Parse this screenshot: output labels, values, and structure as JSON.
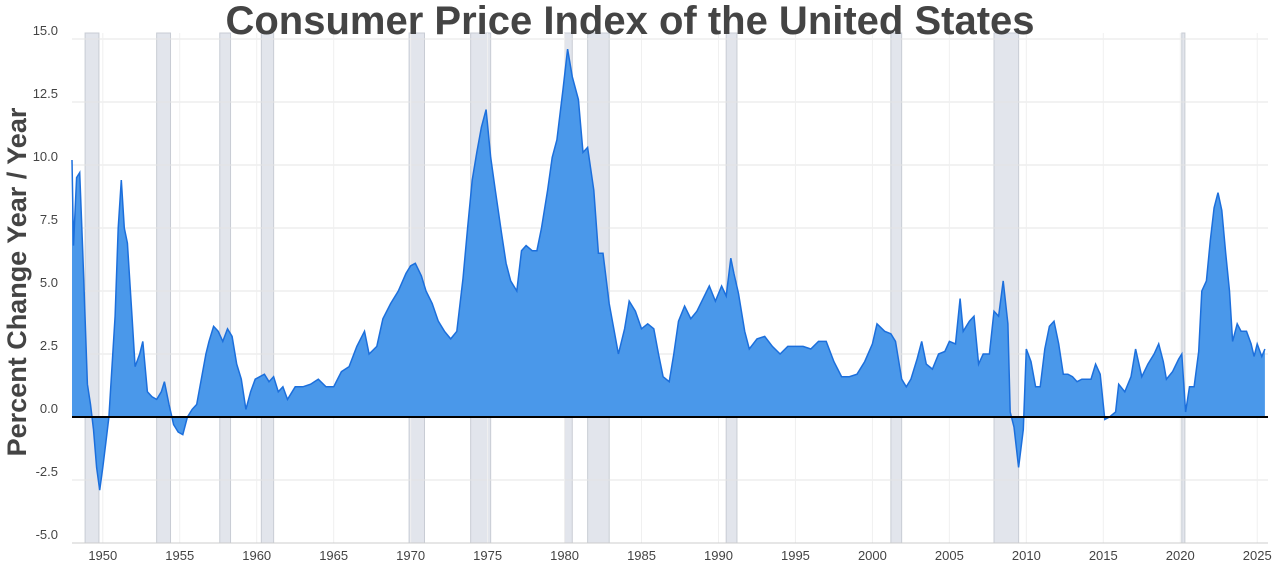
{
  "chart_data": {
    "type": "area",
    "title": "Consumer Price Index of the United States",
    "y_label": "Percent Change Year / Year",
    "color": "#4a98ea",
    "line_color": "#1c6fdc",
    "xlim": [
      1948,
      2025.7
    ],
    "ylim": [
      -5,
      15
    ],
    "xticks": [
      1950,
      1955,
      1960,
      1965,
      1970,
      1975,
      1980,
      1985,
      1990,
      1995,
      2000,
      2005,
      2010,
      2015,
      2020,
      2025
    ],
    "yticks": [
      {
        "value": 15,
        "label": "15.0"
      },
      {
        "value": 12.5,
        "label": "12.5"
      },
      {
        "value": 10,
        "label": "10.0"
      },
      {
        "value": 7.5,
        "label": "7.5"
      },
      {
        "value": 5,
        "label": "5.0"
      },
      {
        "value": 2.5,
        "label": "2.5"
      },
      {
        "value": 0,
        "label": "0.0"
      },
      {
        "value": -2.5,
        "label": "-2.5"
      },
      {
        "value": -5,
        "label": "-5.0"
      }
    ],
    "grid": true,
    "recessions": [
      [
        1948.85,
        1949.75
      ],
      [
        1953.5,
        1954.4
      ],
      [
        1957.6,
        1958.3
      ],
      [
        1960.3,
        1961.1
      ],
      [
        1969.9,
        1970.9
      ],
      [
        1973.9,
        1975.2
      ],
      [
        1980.0,
        1980.5
      ],
      [
        1981.5,
        1982.9
      ],
      [
        1990.5,
        1991.2
      ],
      [
        2001.2,
        2001.9
      ],
      [
        2007.9,
        2009.5
      ],
      [
        2020.1,
        2020.3
      ]
    ],
    "x": [
      1948.0,
      1948.1,
      1948.3,
      1948.5,
      1948.7,
      1948.9,
      1949.0,
      1949.2,
      1949.4,
      1949.6,
      1949.8,
      1950.0,
      1950.2,
      1950.4,
      1950.6,
      1950.8,
      1951.0,
      1951.2,
      1951.4,
      1951.6,
      1951.9,
      1952.1,
      1952.4,
      1952.6,
      1952.9,
      1953.2,
      1953.5,
      1953.8,
      1954.0,
      1954.3,
      1954.6,
      1954.9,
      1955.2,
      1955.5,
      1955.8,
      1956.1,
      1956.4,
      1956.7,
      1956.9,
      1957.2,
      1957.5,
      1957.8,
      1958.1,
      1958.4,
      1958.7,
      1959.0,
      1959.3,
      1959.6,
      1959.9,
      1960.2,
      1960.5,
      1960.8,
      1961.1,
      1961.4,
      1961.7,
      1962.0,
      1962.5,
      1963.0,
      1963.5,
      1964.0,
      1964.5,
      1965.0,
      1965.5,
      1966.0,
      1966.5,
      1967.0,
      1967.3,
      1967.8,
      1968.2,
      1968.7,
      1969.2,
      1969.7,
      1970.0,
      1970.3,
      1970.7,
      1971.0,
      1971.4,
      1971.8,
      1972.2,
      1972.6,
      1973.0,
      1973.4,
      1973.7,
      1974.0,
      1974.3,
      1974.6,
      1974.9,
      1975.2,
      1975.5,
      1975.9,
      1976.2,
      1976.5,
      1976.9,
      1977.2,
      1977.5,
      1977.9,
      1978.2,
      1978.5,
      1978.9,
      1979.2,
      1979.5,
      1979.9,
      1980.2,
      1980.5,
      1980.9,
      1981.2,
      1981.5,
      1981.9,
      1982.2,
      1982.5,
      1982.9,
      1983.2,
      1983.5,
      1983.9,
      1984.2,
      1984.6,
      1985.0,
      1985.4,
      1985.8,
      1986.1,
      1986.4,
      1986.8,
      1987.1,
      1987.4,
      1987.8,
      1988.2,
      1988.6,
      1989.0,
      1989.4,
      1989.8,
      1990.2,
      1990.5,
      1990.8,
      1991.0,
      1991.3,
      1991.7,
      1992.0,
      1992.5,
      1993.0,
      1993.5,
      1994.0,
      1994.5,
      1995.0,
      1995.5,
      1996.0,
      1996.5,
      1997.0,
      1997.5,
      1998.0,
      1998.5,
      1999.0,
      1999.5,
      2000.0,
      2000.3,
      2000.8,
      2001.2,
      2001.5,
      2001.9,
      2002.2,
      2002.5,
      2002.9,
      2003.2,
      2003.5,
      2003.9,
      2004.3,
      2004.7,
      2005.0,
      2005.4,
      2005.7,
      2005.9,
      2006.3,
      2006.6,
      2006.9,
      2007.2,
      2007.6,
      2007.9,
      2008.2,
      2008.5,
      2008.8,
      2008.95,
      2009.2,
      2009.5,
      2009.8,
      2010.0,
      2010.3,
      2010.6,
      2010.9,
      2011.2,
      2011.5,
      2011.8,
      2012.1,
      2012.4,
      2012.7,
      2013.0,
      2013.3,
      2013.6,
      2013.9,
      2014.2,
      2014.5,
      2014.8,
      2014.95,
      2015.1,
      2015.4,
      2015.8,
      2016.0,
      2016.4,
      2016.8,
      2017.1,
      2017.5,
      2017.9,
      2018.3,
      2018.6,
      2018.9,
      2019.1,
      2019.5,
      2019.9,
      2020.1,
      2020.35,
      2020.6,
      2020.9,
      2021.2,
      2021.4,
      2021.7,
      2021.95,
      2022.2,
      2022.45,
      2022.7,
      2022.95,
      2023.2,
      2023.4,
      2023.7,
      2023.95,
      2024.3,
      2024.6,
      2024.8,
      2025.0,
      2025.3,
      2025.5
    ],
    "values": [
      10.2,
      6.8,
      9.5,
      9.7,
      6.5,
      3.0,
      1.3,
      0.5,
      -0.5,
      -2.0,
      -2.9,
      -2.0,
      -1.0,
      0.0,
      2.0,
      4.0,
      7.5,
      9.4,
      7.5,
      6.9,
      4.0,
      2.0,
      2.5,
      3.0,
      1.0,
      0.8,
      0.7,
      1.0,
      1.4,
      0.5,
      -0.3,
      -0.6,
      -0.7,
      0.0,
      0.3,
      0.5,
      1.5,
      2.5,
      3.0,
      3.6,
      3.4,
      3.0,
      3.5,
      3.2,
      2.1,
      1.5,
      0.3,
      1.0,
      1.5,
      1.6,
      1.7,
      1.4,
      1.6,
      1.0,
      1.2,
      0.7,
      1.2,
      1.2,
      1.3,
      1.5,
      1.2,
      1.2,
      1.8,
      2.0,
      2.8,
      3.4,
      2.5,
      2.8,
      3.9,
      4.5,
      5.0,
      5.7,
      6.0,
      6.1,
      5.6,
      5.0,
      4.5,
      3.8,
      3.4,
      3.1,
      3.4,
      5.5,
      7.5,
      9.4,
      10.5,
      11.5,
      12.2,
      10.3,
      9.0,
      7.3,
      6.1,
      5.4,
      5.0,
      6.6,
      6.8,
      6.6,
      6.6,
      7.5,
      9.0,
      10.3,
      11.0,
      13.0,
      14.6,
      13.5,
      12.6,
      10.5,
      10.7,
      9.0,
      6.5,
      6.5,
      4.5,
      3.5,
      2.5,
      3.5,
      4.6,
      4.2,
      3.5,
      3.7,
      3.5,
      2.5,
      1.6,
      1.4,
      2.5,
      3.8,
      4.4,
      3.9,
      4.2,
      4.7,
      5.2,
      4.6,
      5.2,
      4.8,
      6.3,
      5.7,
      4.9,
      3.4,
      2.7,
      3.1,
      3.2,
      2.8,
      2.5,
      2.8,
      2.8,
      2.8,
      2.7,
      3.0,
      3.0,
      2.2,
      1.6,
      1.6,
      1.7,
      2.2,
      2.9,
      3.7,
      3.4,
      3.3,
      3.0,
      1.5,
      1.2,
      1.5,
      2.3,
      3.0,
      2.1,
      1.9,
      2.5,
      2.6,
      3.0,
      2.9,
      4.7,
      3.4,
      3.8,
      4.0,
      2.1,
      2.5,
      2.5,
      4.2,
      4.0,
      5.4,
      3.7,
      0.2,
      -0.4,
      -2.0,
      -0.5,
      2.7,
      2.2,
      1.2,
      1.2,
      2.7,
      3.6,
      3.8,
      2.9,
      1.7,
      1.7,
      1.6,
      1.4,
      1.5,
      1.5,
      1.5,
      2.1,
      1.7,
      0.8,
      -0.1,
      0.0,
      0.2,
      1.3,
      1.0,
      1.6,
      2.7,
      1.6,
      2.1,
      2.5,
      2.9,
      2.2,
      1.5,
      1.8,
      2.3,
      2.5,
      0.2,
      1.2,
      1.2,
      2.6,
      5.0,
      5.4,
      7.0,
      8.3,
      8.9,
      8.2,
      6.5,
      5.0,
      3.0,
      3.7,
      3.4,
      3.4,
      2.9,
      2.4,
      2.9,
      2.4,
      2.7
    ]
  }
}
